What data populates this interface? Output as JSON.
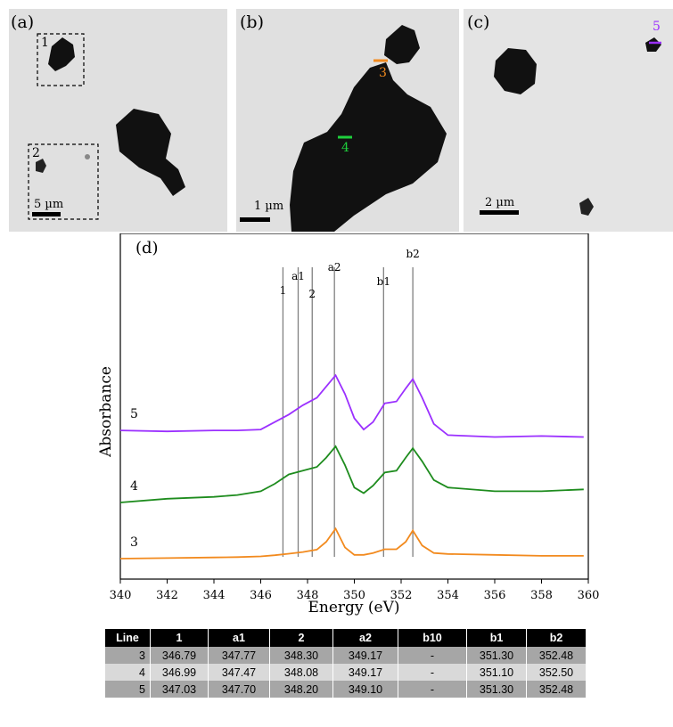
{
  "panels": {
    "a": {
      "label": "(a)",
      "box1": "1",
      "box2": "2",
      "scale": "5 µm"
    },
    "b": {
      "label": "(b)",
      "line3": "3",
      "line4": "4",
      "scale": "1 µm"
    },
    "c": {
      "label": "(c)",
      "line5": "5",
      "scale": "2 µm"
    }
  },
  "chart_data": {
    "type": "line",
    "panel_label": "(d)",
    "xlabel": "Energy (eV)",
    "ylabel": "Absorbance",
    "xlim": [
      340,
      360
    ],
    "xticks": [
      340,
      342,
      344,
      346,
      348,
      350,
      352,
      354,
      356,
      358,
      360
    ],
    "grid": false,
    "series": [
      {
        "name": "5",
        "color": "#9b30ff",
        "offset": 0.62,
        "x": [
          340,
          342,
          344,
          345,
          346,
          346.6,
          347.2,
          347.8,
          348.4,
          348.8,
          349.2,
          349.6,
          350,
          350.4,
          350.8,
          351.3,
          351.8,
          352.2,
          352.5,
          352.9,
          353.4,
          354,
          356,
          358,
          359.8
        ],
        "y": [
          0.065,
          0.06,
          0.065,
          0.065,
          0.07,
          0.11,
          0.15,
          0.2,
          0.24,
          0.3,
          0.36,
          0.26,
          0.13,
          0.07,
          0.11,
          0.21,
          0.22,
          0.29,
          0.34,
          0.24,
          0.1,
          0.04,
          0.03,
          0.035,
          0.03
        ]
      },
      {
        "name": "4",
        "color": "#1e8c1e",
        "offset": 0.3,
        "x": [
          340,
          342,
          344,
          345,
          346,
          346.6,
          347.2,
          347.8,
          348.4,
          348.8,
          349.2,
          349.6,
          350,
          350.4,
          350.8,
          351.3,
          351.8,
          352.2,
          352.5,
          352.9,
          353.4,
          354,
          356,
          358,
          359.8
        ],
        "y": [
          0.0,
          0.02,
          0.03,
          0.04,
          0.06,
          0.1,
          0.15,
          0.17,
          0.19,
          0.24,
          0.3,
          0.2,
          0.08,
          0.05,
          0.09,
          0.16,
          0.17,
          0.24,
          0.29,
          0.22,
          0.12,
          0.08,
          0.06,
          0.06,
          0.07
        ]
      },
      {
        "name": "3",
        "color": "#f28a1e",
        "offset": 0.0,
        "x": [
          340,
          342,
          344,
          345,
          346,
          346.6,
          347.2,
          347.8,
          348.4,
          348.8,
          349.2,
          349.6,
          350,
          350.4,
          350.8,
          351.3,
          351.8,
          352.2,
          352.5,
          352.9,
          353.4,
          354,
          356,
          358,
          359.8
        ],
        "y": [
          0.0,
          0.003,
          0.006,
          0.008,
          0.012,
          0.018,
          0.026,
          0.035,
          0.048,
          0.09,
          0.16,
          0.06,
          0.02,
          0.02,
          0.03,
          0.05,
          0.05,
          0.09,
          0.15,
          0.07,
          0.03,
          0.025,
          0.02,
          0.015,
          0.015
        ]
      }
    ],
    "reference_lines": [
      {
        "label": "1",
        "x": 346.95
      },
      {
        "label": "a1",
        "x": 347.6
      },
      {
        "label": "2",
        "x": 348.2
      },
      {
        "label": "a2",
        "x": 349.15
      },
      {
        "label": "b1",
        "x": 351.25
      },
      {
        "label": "b2",
        "x": 352.5
      }
    ]
  },
  "table": {
    "headers": [
      "Line",
      "1",
      "a1",
      "2",
      "a2",
      "b10",
      "b1",
      "b2"
    ],
    "rows": [
      [
        "3",
        "346.79",
        "347.77",
        "348.30",
        "349.17",
        "-",
        "351.30",
        "352.48"
      ],
      [
        "4",
        "346.99",
        "347.47",
        "348.08",
        "349.17",
        "-",
        "351.10",
        "352.50"
      ],
      [
        "5",
        "347.03",
        "347.70",
        "348.20",
        "349.10",
        "-",
        "351.30",
        "352.48"
      ]
    ]
  }
}
